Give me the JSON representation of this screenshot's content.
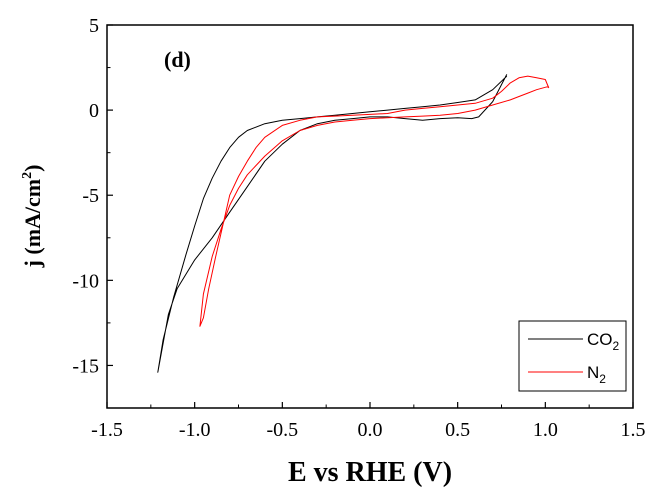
{
  "chart_data": {
    "type": "line",
    "panel_label": "(d)",
    "xlabel": "E vs RHE (V)",
    "ylabel": {
      "main": "j (mA/cm",
      "sup": "2",
      "end": ")"
    },
    "xlim": [
      -1.5,
      1.5
    ],
    "ylim": [
      -17.5,
      5
    ],
    "x_ticks": [
      -1.5,
      -1.0,
      -0.5,
      0.0,
      0.5,
      1.0,
      1.5
    ],
    "x_tick_labels": [
      "-1.5",
      "-1.0",
      "-0.5",
      "0.0",
      "0.5",
      "1.0",
      "1.5"
    ],
    "y_ticks": [
      5,
      0,
      -5,
      -10,
      -15
    ],
    "y_tick_labels": [
      "5",
      "0",
      "-5",
      "-10",
      "-15"
    ],
    "legend_position": "bottom-right",
    "series": [
      {
        "name": "CO2",
        "legend_main": "CO",
        "legend_sub": "2",
        "color": "#000000",
        "x": [
          0.78,
          0.7,
          0.62,
          0.58,
          0.5,
          0.4,
          0.3,
          0.2,
          0.1,
          0.0,
          -0.1,
          -0.2,
          -0.3,
          -0.4,
          -0.5,
          -0.6,
          -0.7,
          -0.8,
          -0.9,
          -1.0,
          -1.1,
          -1.15,
          -1.21,
          -1.18,
          -1.12,
          -1.05,
          -1.0,
          -0.95,
          -0.9,
          -0.85,
          -0.8,
          -0.75,
          -0.7,
          -0.6,
          -0.5,
          -0.4,
          -0.3,
          -0.2,
          -0.1,
          0.0,
          0.1,
          0.2,
          0.3,
          0.4,
          0.5,
          0.6,
          0.7,
          0.78
        ],
        "y": [
          2.1,
          0.5,
          -0.4,
          -0.5,
          -0.45,
          -0.5,
          -0.6,
          -0.5,
          -0.4,
          -0.4,
          -0.5,
          -0.6,
          -0.8,
          -1.2,
          -2.0,
          -3.0,
          -4.5,
          -6.0,
          -7.5,
          -8.8,
          -10.5,
          -12.0,
          -15.4,
          -13.5,
          -11.0,
          -8.5,
          -6.8,
          -5.2,
          -4.0,
          -3.0,
          -2.2,
          -1.6,
          -1.2,
          -0.8,
          -0.6,
          -0.5,
          -0.4,
          -0.3,
          -0.2,
          -0.1,
          0.0,
          0.1,
          0.2,
          0.3,
          0.45,
          0.6,
          1.2,
          2.0
        ]
      },
      {
        "name": "N2",
        "legend_main": "N",
        "legend_sub": "2",
        "color": "#ff0000",
        "x": [
          1.02,
          0.95,
          0.9,
          0.85,
          0.8,
          0.7,
          0.6,
          0.5,
          0.4,
          0.3,
          0.2,
          0.1,
          0.0,
          -0.1,
          -0.2,
          -0.3,
          -0.4,
          -0.5,
          -0.6,
          -0.7,
          -0.75,
          -0.8,
          -0.85,
          -0.9,
          -0.95,
          -0.97,
          -0.95,
          -0.92,
          -0.88,
          -0.84,
          -0.8,
          -0.75,
          -0.7,
          -0.65,
          -0.6,
          -0.5,
          -0.4,
          -0.3,
          -0.2,
          -0.1,
          0.0,
          0.1,
          0.2,
          0.3,
          0.4,
          0.5,
          0.6,
          0.7,
          0.75,
          0.8,
          0.85,
          0.9,
          0.95,
          1.0,
          1.02
        ],
        "y": [
          1.4,
          1.2,
          1.0,
          0.8,
          0.6,
          0.3,
          0.0,
          -0.2,
          -0.3,
          -0.35,
          -0.4,
          -0.45,
          -0.5,
          -0.6,
          -0.7,
          -0.9,
          -1.2,
          -1.8,
          -2.7,
          -3.8,
          -4.6,
          -5.6,
          -7.0,
          -8.6,
          -10.8,
          -12.7,
          -12.2,
          -10.5,
          -8.6,
          -6.8,
          -5.0,
          -3.9,
          -3.0,
          -2.2,
          -1.6,
          -0.9,
          -0.6,
          -0.4,
          -0.35,
          -0.3,
          -0.25,
          -0.2,
          0.0,
          0.1,
          0.2,
          0.3,
          0.4,
          0.7,
          1.1,
          1.6,
          1.9,
          2.0,
          1.9,
          1.8,
          1.3
        ]
      }
    ]
  }
}
